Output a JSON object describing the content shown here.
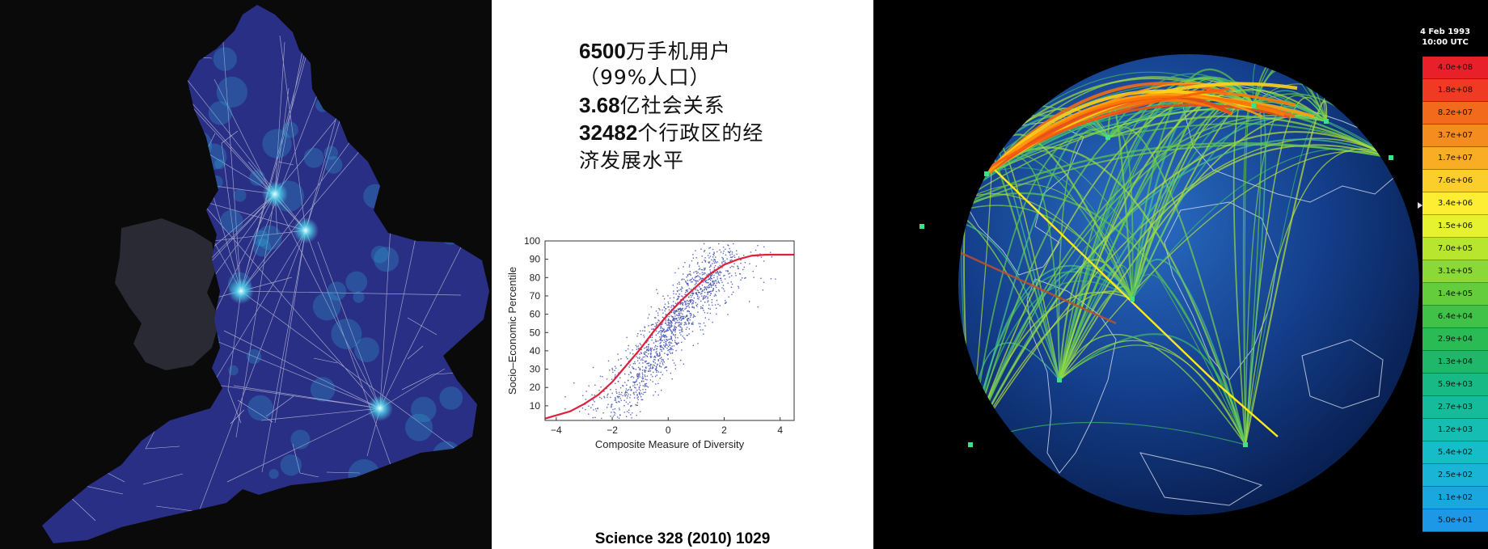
{
  "stats": {
    "line1_num": "6500",
    "line1_text": "万手机用户",
    "line2_text": "（99%人口）",
    "line3_num": "3.68",
    "line3_text": "亿社会关系",
    "line4_num": "32482",
    "line4_text": "个行政区的经",
    "line5_text": "济发展水平"
  },
  "citation": "Science 328 (2010) 1029",
  "timestamp": {
    "date": "4 Feb 1993",
    "time": "10:00 UTC"
  },
  "color_scale": [
    {
      "label": "4.0e+08",
      "color": "#e8202a"
    },
    {
      "label": "1.8e+08",
      "color": "#ee3b22"
    },
    {
      "label": "8.2e+07",
      "color": "#f26a1c"
    },
    {
      "label": "3.7e+07",
      "color": "#f58c1f"
    },
    {
      "label": "1.7e+07",
      "color": "#f8ad25"
    },
    {
      "label": "7.6e+06",
      "color": "#fbce2b"
    },
    {
      "label": "3.4e+06",
      "color": "#fdee34"
    },
    {
      "label": "1.5e+06",
      "color": "#e6f12f"
    },
    {
      "label": "7.0e+05",
      "color": "#b8e62f"
    },
    {
      "label": "3.1e+05",
      "color": "#8bd937"
    },
    {
      "label": "1.4e+05",
      "color": "#63cd3c"
    },
    {
      "label": "6.4e+04",
      "color": "#40c147"
    },
    {
      "label": "2.9e+04",
      "color": "#2bbb55"
    },
    {
      "label": "1.3e+04",
      "color": "#1fb86b"
    },
    {
      "label": "5.9e+03",
      "color": "#19b985"
    },
    {
      "label": "2.7e+03",
      "color": "#16bb9c"
    },
    {
      "label": "1.2e+03",
      "color": "#15bdb3"
    },
    {
      "label": "5.4e+02",
      "color": "#16bcc8"
    },
    {
      "label": "2.5e+02",
      "color": "#19b4d6"
    },
    {
      "label": "1.1e+02",
      "color": "#1aa7e0"
    },
    {
      "label": "5.0e+01",
      "color": "#1d98e6"
    }
  ],
  "chart_data": {
    "type": "scatter",
    "xlabel": "Composite Measure of Diversity",
    "ylabel": "Socio–Economic Percentile",
    "xlim": [
      -4.4,
      4.5
    ],
    "ylim": [
      2,
      100
    ],
    "xticks": [
      -4,
      -2,
      0,
      2,
      4
    ],
    "yticks": [
      10,
      20,
      30,
      40,
      50,
      60,
      70,
      80,
      90,
      100
    ],
    "grid": false,
    "series": [
      {
        "kind": "points",
        "color": "#3f4fb0",
        "trend": "sigmoid",
        "approx_count": 1500
      },
      {
        "kind": "fit_curve",
        "color": "#e0203a",
        "x": [
          -4.4,
          -3.5,
          -3.0,
          -2.5,
          -2.0,
          -1.5,
          -1.0,
          -0.5,
          0,
          0.5,
          1.0,
          1.5,
          2.0,
          2.5,
          3.0,
          3.5,
          4.0,
          4.5
        ],
        "y": [
          3,
          7,
          11,
          16,
          23,
          32,
          41,
          51,
          60,
          68,
          75,
          82,
          87,
          90,
          92,
          92.5,
          92.5,
          92.5
        ]
      }
    ]
  }
}
